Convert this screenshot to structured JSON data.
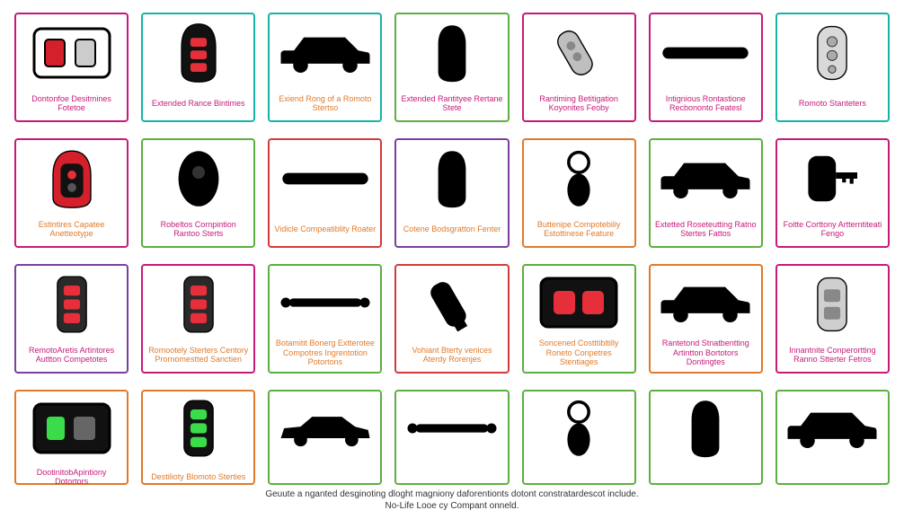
{
  "border_colors": {
    "magenta": "#c61a7a",
    "teal": "#16b3a8",
    "red": "#d43a3a",
    "orange": "#e07a2a",
    "green": "#5bb03e",
    "purple": "#7a3fa0"
  },
  "caption_colors": {
    "magenta": "#c61a7a",
    "teal": "#16b3a8",
    "red": "#d43a3a",
    "orange": "#e07a2a",
    "green": "#5bb03e",
    "purple": "#7a3fa0"
  },
  "rows": [
    {
      "class": "row1",
      "cells": [
        {
          "icon": "remote-box-red",
          "border": "magenta",
          "caption_color": "magenta",
          "caption": "Dontonfoe Desitmines Fotetoe"
        },
        {
          "icon": "fob-red-buttons",
          "border": "teal",
          "caption_color": "magenta",
          "caption": "Extended Rance Bintimes"
        },
        {
          "icon": "suv",
          "border": "teal",
          "caption_color": "orange",
          "caption": "Exiend Rong of a Romoto Stertso"
        },
        {
          "icon": "fob-solid",
          "border": "green",
          "caption_color": "magenta",
          "caption": "Extended Rantityee Rertane Stete"
        },
        {
          "icon": "fob-angled-gray",
          "border": "magenta",
          "caption_color": "magenta",
          "caption": "Rantiming Betitigation Koyonites Feoby"
        },
        {
          "icon": "bar-handle",
          "border": "magenta",
          "caption_color": "magenta",
          "caption": "Intignious Rontastione Recbononto Featesl"
        },
        {
          "icon": "fob-outline-gray",
          "border": "teal",
          "caption_color": "magenta",
          "caption": "Romoto Stanteters"
        }
      ]
    },
    {
      "class": "row2",
      "cells": [
        {
          "icon": "fob-red-black",
          "border": "magenta",
          "caption_color": "orange",
          "caption": "Estintires Capatee Anetteotype"
        },
        {
          "icon": "fob-solid-rounded",
          "border": "green",
          "caption_color": "magenta",
          "caption": "Robeltos Cornpintion Rantoo Sterts"
        },
        {
          "icon": "bar-handle",
          "border": "red",
          "caption_color": "orange",
          "caption": "Vidicle Compeatiblity Roater"
        },
        {
          "icon": "fob-solid",
          "border": "purple",
          "caption_color": "orange",
          "caption": "Cotene Bodsgratton Fenter"
        },
        {
          "icon": "keyring",
          "border": "orange",
          "caption_color": "orange",
          "caption": "Buttenipe Compotebiliy Estottinese Feature"
        },
        {
          "icon": "suv",
          "border": "green",
          "caption_color": "magenta",
          "caption": "Extetted Roseteutting Ratno Stertes Fattos"
        },
        {
          "icon": "fob-with-key",
          "border": "magenta",
          "caption_color": "magenta",
          "caption": "Foitte Corttony Artterntiteati Fengo"
        }
      ]
    },
    {
      "class": "row3",
      "cells": [
        {
          "icon": "fob-red-buttons-tall",
          "border": "purple",
          "caption_color": "magenta",
          "caption": "RemotoAretis Artintores Auttton Competotes"
        },
        {
          "icon": "fob-red-buttons-tall",
          "border": "magenta",
          "caption_color": "orange",
          "caption": "Romootely Sterters Centory Prornomestted Sanctien"
        },
        {
          "icon": "bar-double-dot",
          "border": "green",
          "caption_color": "orange",
          "caption": "Botamitit Bonerg Extterotee Compotres Ingrentotion Potortons"
        },
        {
          "icon": "fob-angled-black",
          "border": "red",
          "caption_color": "orange",
          "caption": "Vohiant Bterty venices Aterdy Rorenjes"
        },
        {
          "icon": "remote-box-red-2btn",
          "border": "green",
          "caption_color": "orange",
          "caption": "Soncened Costttibltilly Roneto Conpetres Stentiages"
        },
        {
          "icon": "suv",
          "border": "orange",
          "caption_color": "magenta",
          "caption": "Rantetond Stnatbentting Artintton Bortotors Dontingtes"
        },
        {
          "icon": "fob-gray-2btn",
          "border": "magenta",
          "caption_color": "magenta",
          "caption": "Innantnite Conperortting Ranno Stterter Fetros"
        }
      ]
    },
    {
      "class": "row4",
      "cells": [
        {
          "icon": "remote-box-green",
          "border": "orange",
          "caption_color": "magenta",
          "caption": "DootinitobApintiony Dotortors"
        },
        {
          "icon": "fob-green-buttons",
          "border": "orange",
          "caption_color": "orange",
          "caption": "Destilioty Blomoto Sterties"
        },
        {
          "icon": "car-sedan",
          "border": "green",
          "caption_color": "green",
          "caption": ""
        },
        {
          "icon": "bar-double-dot",
          "border": "green",
          "caption_color": "green",
          "caption": ""
        },
        {
          "icon": "keyring",
          "border": "green",
          "caption_color": "green",
          "caption": ""
        },
        {
          "icon": "fob-solid",
          "border": "green",
          "caption_color": "green",
          "caption": ""
        },
        {
          "icon": "suv",
          "border": "green",
          "caption_color": "green",
          "caption": ""
        }
      ]
    }
  ],
  "footer_line1": "Geuute a nganted desginoting dloght magniony daforentionts dotont constratardescot include.",
  "footer_line2": "No-Life Looe cy Compant onneld."
}
